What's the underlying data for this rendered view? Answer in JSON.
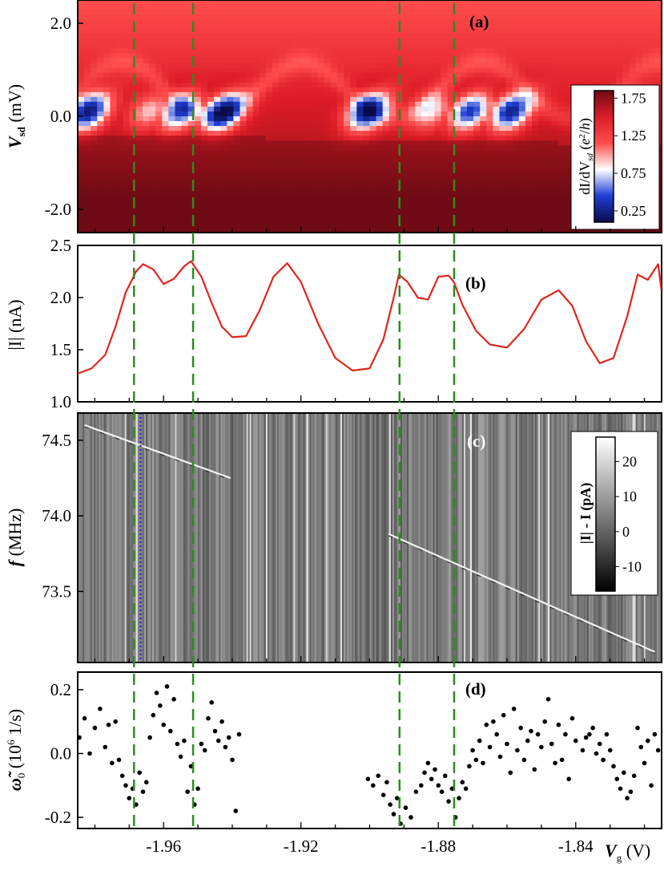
{
  "figure": {
    "xaxis": {
      "label_var": "V",
      "label_sub": "g",
      "label_unit": " (V)",
      "ticks": [
        "-1.96",
        "-1.92",
        "-1.88",
        "-1.84"
      ],
      "range": [
        -1.985,
        -1.815
      ]
    },
    "dashed_lines_x": [
      -1.9686,
      -1.9514,
      -1.8913,
      -1.8754
    ],
    "colors": {
      "dashed": "#2e8b22",
      "dotted": "#2a2ae0",
      "trace": "#e0261d",
      "dots": "#000000"
    }
  },
  "chart_data": [
    {
      "type": "heatmap",
      "panel_label": "(a)",
      "ylabel": {
        "var": "V",
        "sub": "sd",
        "unit": " (mV)"
      },
      "yticks": [
        "2.0",
        "0.0",
        "-2.0"
      ],
      "ylim": [
        -2.5,
        2.5
      ],
      "colorbar": {
        "title_parts": [
          "dI/dV",
          "sd",
          " (",
          "e",
          "2",
          "/",
          "h",
          ")"
        ],
        "ticks": [
          "1.75",
          "1.25",
          "0.75",
          "0.25"
        ],
        "range": [
          0.1,
          1.85
        ],
        "colors": [
          "#0b0b4a",
          "#1f3fd6",
          "#ffffff",
          "#e8282a",
          "#6e0b14"
        ]
      },
      "diamonds": [
        {
          "vg": -1.9818,
          "amp": 1.0
        },
        {
          "vg": -1.9642,
          "amp": 0.45
        },
        {
          "vg": -1.9552,
          "amp": 0.8
        },
        {
          "vg": -1.9425,
          "amp": 1.0
        },
        {
          "vg": -1.9005,
          "amp": 1.0
        },
        {
          "vg": -1.8822,
          "amp": 0.5
        },
        {
          "vg": -1.8708,
          "amp": 0.85
        },
        {
          "vg": -1.8588,
          "amp": 0.95
        },
        {
          "vg": -1.8265,
          "amp": 0.8
        }
      ]
    },
    {
      "type": "line",
      "panel_label": "(b)",
      "ylabel": {
        "text": "|I| (nA)"
      },
      "yticks": [
        "2.5",
        "2.0",
        "1.5",
        "1.0"
      ],
      "ylim": [
        1.0,
        2.5
      ],
      "series": [
        {
          "x": [
            -1.985,
            -1.981,
            -1.977,
            -1.974,
            -1.971,
            -1.968,
            -1.966,
            -1.963,
            -1.96,
            -1.957,
            -1.954,
            -1.952,
            -1.949,
            -1.946,
            -1.943,
            -1.94,
            -1.936,
            -1.932,
            -1.928,
            -1.924,
            -1.92,
            -1.915,
            -1.91,
            -1.905,
            -1.9,
            -1.896,
            -1.893,
            -1.8915,
            -1.889,
            -1.886,
            -1.883,
            -1.88,
            -1.877,
            -1.8755,
            -1.873,
            -1.869,
            -1.865,
            -1.86,
            -1.855,
            -1.85,
            -1.845,
            -1.841,
            -1.837,
            -1.833,
            -1.829,
            -1.825,
            -1.822,
            -1.819,
            -1.816,
            -1.815
          ],
          "y": [
            1.27,
            1.32,
            1.45,
            1.72,
            2.05,
            2.25,
            2.32,
            2.27,
            2.13,
            2.18,
            2.3,
            2.35,
            2.2,
            1.95,
            1.72,
            1.62,
            1.63,
            1.88,
            2.2,
            2.33,
            2.15,
            1.75,
            1.42,
            1.3,
            1.32,
            1.6,
            2.0,
            2.22,
            2.15,
            2.0,
            1.98,
            2.2,
            2.21,
            2.15,
            1.93,
            1.68,
            1.55,
            1.52,
            1.7,
            1.98,
            2.07,
            1.92,
            1.58,
            1.37,
            1.42,
            1.82,
            2.22,
            2.17,
            2.32,
            2.06
          ]
        }
      ]
    },
    {
      "type": "heatmap",
      "panel_label": "(c)",
      "ylabel": {
        "var": "f",
        "unit": " (MHz)"
      },
      "yticks": [
        "74.5",
        "74.0",
        "73.5"
      ],
      "ylim": [
        73.03,
        74.68
      ],
      "colorbar": {
        "title": "|I| - I (pA)",
        "ticks": [
          "20",
          "10",
          "0",
          "-10"
        ],
        "range": [
          -17,
          27
        ]
      },
      "dotted_line_x": -1.9667,
      "resonance_segments": [
        {
          "x0": -1.983,
          "f0": 74.6,
          "x1": -1.9405,
          "f1": 74.25
        },
        {
          "x0": -1.8945,
          "f0": 73.88,
          "x1": -1.817,
          "f1": 73.1
        }
      ]
    },
    {
      "type": "scatter",
      "panel_label": "(d)",
      "ylabel": {
        "var": "ω̃",
        "sub": "0",
        "unit": " (10",
        "sup": "6",
        "unit2": " 1/s)"
      },
      "yticks": [
        "0.2",
        "0.0",
        "-0.2"
      ],
      "ylim": [
        -0.235,
        0.255
      ],
      "series": [
        {
          "x": [
            -1.9845,
            -1.983,
            -1.9815,
            -1.98,
            -1.9785,
            -1.977,
            -1.976,
            -1.975,
            -1.974,
            -1.973,
            -1.972,
            -1.971,
            -1.97,
            -1.969,
            -1.968,
            -1.967,
            -1.966,
            -1.965,
            -1.964,
            -1.963,
            -1.962,
            -1.961,
            -1.96,
            -1.959,
            -1.958,
            -1.957,
            -1.956,
            -1.955,
            -1.954,
            -1.953,
            -1.952,
            -1.951,
            -1.95,
            -1.949,
            -1.948,
            -1.947,
            -1.946,
            -1.945,
            -1.944,
            -1.943,
            -1.942,
            -1.941,
            -1.94,
            -1.939,
            -1.938,
            -1.9005,
            -1.899,
            -1.8975,
            -1.896,
            -1.895,
            -1.894,
            -1.893,
            -1.892,
            -1.891,
            -1.8895,
            -1.888,
            -1.8865,
            -1.885,
            -1.884,
            -1.883,
            -1.882,
            -1.881,
            -1.88,
            -1.879,
            -1.878,
            -1.877,
            -1.876,
            -1.875,
            -1.874,
            -1.873,
            -1.872,
            -1.871,
            -1.87,
            -1.869,
            -1.868,
            -1.867,
            -1.866,
            -1.865,
            -1.864,
            -1.863,
            -1.862,
            -1.861,
            -1.86,
            -1.859,
            -1.858,
            -1.857,
            -1.856,
            -1.855,
            -1.854,
            -1.853,
            -1.852,
            -1.851,
            -1.85,
            -1.849,
            -1.848,
            -1.847,
            -1.846,
            -1.845,
            -1.844,
            -1.843,
            -1.842,
            -1.841,
            -1.84,
            -1.838,
            -1.837,
            -1.836,
            -1.835,
            -1.834,
            -1.833,
            -1.832,
            -1.831,
            -1.83,
            -1.829,
            -1.828,
            -1.827,
            -1.826,
            -1.825,
            -1.824,
            -1.823,
            -1.822,
            -1.821,
            -1.82,
            -1.819,
            -1.818,
            -1.817,
            -1.816
          ],
          "y": [
            0.05,
            0.11,
            0.0,
            0.08,
            0.14,
            0.02,
            0.09,
            -0.03,
            0.1,
            -0.02,
            -0.07,
            -0.1,
            -0.14,
            -0.11,
            -0.16,
            -0.06,
            -0.12,
            -0.09,
            0.05,
            0.12,
            0.19,
            0.15,
            0.09,
            0.21,
            0.07,
            0.17,
            0.03,
            -0.01,
            0.04,
            -0.12,
            -0.04,
            -0.16,
            -0.11,
            0.03,
            0.01,
            0.11,
            0.16,
            0.07,
            0.04,
            0.1,
            0.02,
            0.05,
            -0.02,
            -0.18,
            0.06,
            -0.08,
            -0.1,
            -0.07,
            -0.13,
            -0.09,
            -0.16,
            -0.19,
            -0.14,
            -0.22,
            -0.17,
            -0.2,
            -0.12,
            -0.1,
            -0.06,
            -0.03,
            -0.08,
            -0.05,
            -0.1,
            -0.12,
            -0.07,
            -0.15,
            -0.11,
            -0.2,
            -0.14,
            -0.09,
            -0.11,
            -0.04,
            0.01,
            -0.02,
            0.04,
            -0.03,
            0.09,
            0.02,
            0.1,
            0.06,
            -0.01,
            0.12,
            0.03,
            -0.06,
            0.14,
            0.01,
            0.08,
            -0.02,
            0.04,
            0.07,
            -0.05,
            0.06,
            0.02,
            0.1,
            0.17,
            0.03,
            -0.03,
            0.09,
            -0.02,
            0.06,
            -0.08,
            0.11,
            0.04,
            0.01,
            0.05,
            0.06,
            0.08,
            0.0,
            0.03,
            -0.02,
            0.06,
            0.01,
            -0.04,
            -0.08,
            -0.11,
            -0.06,
            -0.14,
            -0.12,
            -0.07,
            0.08,
            0.02,
            -0.03,
            0.04,
            -0.1,
            0.06,
            0.01
          ]
        }
      ]
    }
  ]
}
